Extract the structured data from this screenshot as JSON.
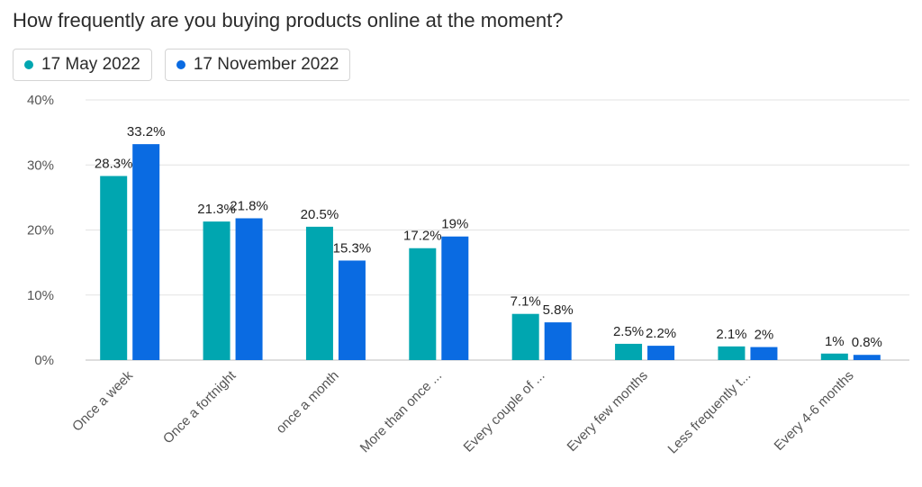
{
  "chart_data": {
    "type": "bar",
    "title": "How frequently are you buying products online at the moment?",
    "categories": [
      "Once a week",
      "Once a fortnight",
      "once a month",
      "More than once ...",
      "Every couple of ...",
      "Every few months",
      "Less frequently t...",
      "Every 4-6 months"
    ],
    "series": [
      {
        "name": "17 May 2022",
        "color": "#00a6b0",
        "values": [
          28.3,
          21.3,
          20.5,
          17.2,
          7.1,
          2.5,
          2.1,
          1.0
        ],
        "labels": [
          "28.3%",
          "21.3%",
          "20.5%",
          "17.2%",
          "7.1%",
          "2.5%",
          "2.1%",
          "1%"
        ]
      },
      {
        "name": "17 November 2022",
        "color": "#0a6be2",
        "values": [
          33.2,
          21.8,
          15.3,
          19.0,
          5.8,
          2.2,
          2.0,
          0.8
        ],
        "labels": [
          "33.2%",
          "21.8%",
          "15.3%",
          "19%",
          "5.8%",
          "2.2%",
          "2%",
          "0.8%"
        ]
      }
    ],
    "ylim": [
      0,
      40
    ],
    "yticks": [
      "0%",
      "10%",
      "20%",
      "30%",
      "40%"
    ],
    "grid": true,
    "legend": "top-left"
  }
}
